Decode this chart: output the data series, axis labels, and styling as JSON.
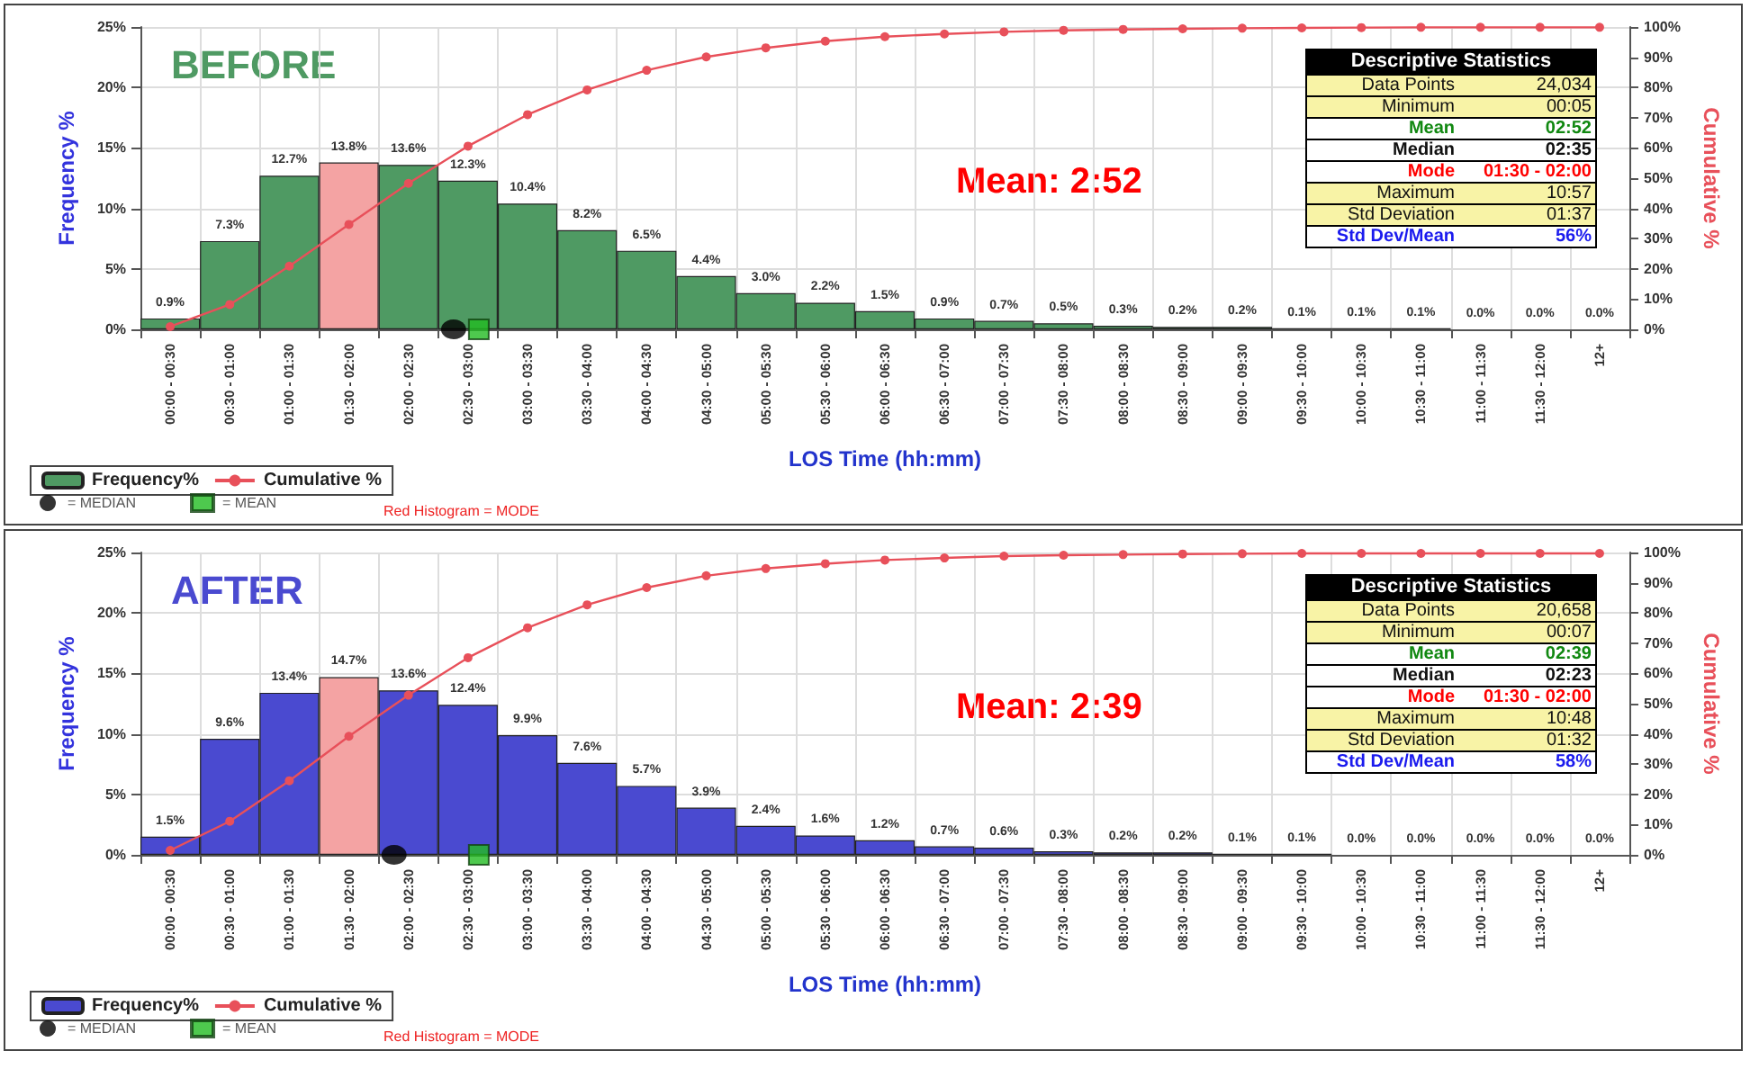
{
  "chart_data": [
    {
      "type": "bar",
      "xlabel": "LOS Time (hh:mm)",
      "ylabel": "Frequency %",
      "y2label": "Cumulative %",
      "grid": true,
      "legend": "bottom left",
      "categories": [
        "00:00 - 00:30",
        "00:30 - 01:00",
        "01:00 - 01:30",
        "01:30 - 02:00",
        "02:00 - 02:30",
        "02:30 - 03:00",
        "03:00 - 03:30",
        "03:30 - 04:00",
        "04:00 - 04:30",
        "04:30 - 05:00",
        "05:00 - 05:30",
        "05:30 - 06:00",
        "06:00 - 06:30",
        "06:30 - 07:00",
        "07:00 - 07:30",
        "07:30 - 08:00",
        "08:00 - 08:30",
        "08:30 - 09:00",
        "09:00 - 09:30",
        "09:30 - 10:00",
        "10:00 - 10:30",
        "10:30 - 11:00",
        "11:00 - 11:30",
        "11:30 - 12:00",
        "12+"
      ],
      "ylim": [
        0,
        25
      ],
      "yticks": [
        {
          "value": 0,
          "label": "0%"
        },
        {
          "value": 5,
          "label": "5%"
        },
        {
          "value": 10,
          "label": "10%"
        },
        {
          "value": 15,
          "label": "15%"
        },
        {
          "value": 20,
          "label": "20%"
        },
        {
          "value": 25,
          "label": "25%"
        }
      ],
      "y2lim": [
        0,
        100
      ],
      "y2ticks": [
        {
          "value": 0,
          "label": "0%"
        },
        {
          "value": 10,
          "label": "10%"
        },
        {
          "value": 20,
          "label": "20%"
        },
        {
          "value": 30,
          "label": "30%"
        },
        {
          "value": 40,
          "label": "40%"
        },
        {
          "value": 50,
          "label": "50%"
        },
        {
          "value": 60,
          "label": "60%"
        },
        {
          "value": 70,
          "label": "70%"
        },
        {
          "value": 80,
          "label": "80%"
        },
        {
          "value": 90,
          "label": "90%"
        },
        {
          "value": 100,
          "label": "100%"
        }
      ],
      "series": [
        {
          "name": "Frequency%",
          "color": "#4f9a63",
          "colors": [
            "#4f9a63",
            "#4f9a63",
            "#4f9a63",
            "#f4a3a3",
            "#4f9a63",
            "#4f9a63",
            "#4f9a63",
            "#4f9a63",
            "#4f9a63",
            "#4f9a63",
            "#4f9a63",
            "#4f9a63",
            "#4f9a63",
            "#4f9a63",
            "#4f9a63",
            "#4f9a63",
            "#4f9a63",
            "#4f9a63",
            "#4f9a63",
            "#4f9a63",
            "#4f9a63",
            "#4f9a63",
            "#4f9a63",
            "#4f9a63",
            "#4f9a63"
          ],
          "values": [
            0.9,
            7.3,
            12.7,
            13.8,
            13.6,
            12.3,
            10.4,
            8.2,
            6.5,
            4.4,
            3.0,
            2.2,
            1.5,
            0.9,
            0.7,
            0.5,
            0.3,
            0.2,
            0.2,
            0.1,
            0.1,
            0.1,
            0.0,
            0.0,
            0.0
          ],
          "value_labels": [
            "0.9%",
            "7.3%",
            "12.7%",
            "13.8%",
            "13.6%",
            "12.3%",
            "10.4%",
            "8.2%",
            "6.5%",
            "4.4%",
            "3.0%",
            "2.2%",
            "1.5%",
            "0.9%",
            "0.7%",
            "0.5%",
            "0.3%",
            "0.2%",
            "0.2%",
            "0.1%",
            "0.1%",
            "0.1%",
            "0.0%",
            "0.0%",
            "0.0%"
          ]
        },
        {
          "name": "Cumulative %",
          "type": "line",
          "axis": "y2",
          "marker": "circle",
          "color": "#e8505a",
          "values": [
            0.9,
            8.2,
            20.9,
            34.7,
            48.3,
            60.6,
            71.0,
            79.2,
            85.7,
            90.1,
            93.1,
            95.3,
            96.8,
            97.7,
            98.4,
            98.9,
            99.2,
            99.4,
            99.6,
            99.7,
            99.8,
            99.9,
            99.9,
            99.9,
            99.9
          ]
        },
        {
          "name": "= MEDIAN",
          "type": "scatter",
          "marker": "circle",
          "color": "#000000",
          "values": [
            null,
            null,
            null,
            null,
            null,
            0,
            null,
            null,
            null,
            null,
            null,
            null,
            null,
            null,
            null,
            null,
            null,
            null,
            null,
            null,
            null,
            null,
            null,
            null,
            null
          ]
        },
        {
          "name": "= MEAN",
          "type": "scatter",
          "marker": "square",
          "color": "#22bb22",
          "values": [
            null,
            null,
            null,
            null,
            null,
            0,
            null,
            null,
            null,
            null,
            null,
            null,
            null,
            null,
            null,
            null,
            null,
            null,
            null,
            null,
            null,
            null,
            null,
            null,
            null
          ]
        }
      ],
      "annotations": [
        "BEFORE",
        "Mean: 2:52",
        "Descriptive Statistics",
        "Data Points",
        "24,034",
        "Minimum",
        "00:05",
        "Mean",
        "02:52",
        "Median",
        "02:35",
        "Mode",
        "01:30 - 02:00",
        "Maximum",
        "10:57",
        "Std Deviation",
        "01:37",
        "Std Dev/Mean",
        "56%",
        "Red Histogram = MODE"
      ]
    },
    {
      "type": "bar",
      "xlabel": "LOS Time (hh:mm)",
      "ylabel": "Frequency %",
      "y2label": "Cumulative %",
      "grid": true,
      "legend": "bottom left",
      "categories": [
        "00:00 - 00:30",
        "00:30 - 01:00",
        "01:00 - 01:30",
        "01:30 - 02:00",
        "02:00 - 02:30",
        "02:30 - 03:00",
        "03:00 - 03:30",
        "03:30 - 04:00",
        "04:00 - 04:30",
        "04:30 - 05:00",
        "05:00 - 05:30",
        "05:30 - 06:00",
        "06:00 - 06:30",
        "06:30 - 07:00",
        "07:00 - 07:30",
        "07:30 - 08:00",
        "08:00 - 08:30",
        "08:30 - 09:00",
        "09:00 - 09:30",
        "09:30 - 10:00",
        "10:00 - 10:30",
        "10:30 - 11:00",
        "11:00 - 11:30",
        "11:30 - 12:00",
        "12+"
      ],
      "ylim": [
        0,
        25
      ],
      "yticks": [
        {
          "value": 0,
          "label": "0%"
        },
        {
          "value": 5,
          "label": "5%"
        },
        {
          "value": 10,
          "label": "10%"
        },
        {
          "value": 15,
          "label": "15%"
        },
        {
          "value": 20,
          "label": "20%"
        },
        {
          "value": 25,
          "label": "25%"
        }
      ],
      "y2lim": [
        0,
        100
      ],
      "y2ticks": [
        {
          "value": 0,
          "label": "0%"
        },
        {
          "value": 10,
          "label": "10%"
        },
        {
          "value": 20,
          "label": "20%"
        },
        {
          "value": 30,
          "label": "30%"
        },
        {
          "value": 40,
          "label": "40%"
        },
        {
          "value": 50,
          "label": "50%"
        },
        {
          "value": 60,
          "label": "60%"
        },
        {
          "value": 70,
          "label": "70%"
        },
        {
          "value": 80,
          "label": "80%"
        },
        {
          "value": 90,
          "label": "90%"
        },
        {
          "value": 100,
          "label": "100%"
        }
      ],
      "series": [
        {
          "name": "Frequency%",
          "color": "#4a4ad0",
          "colors": [
            "#4a4ad0",
            "#4a4ad0",
            "#4a4ad0",
            "#f4a3a3",
            "#4a4ad0",
            "#4a4ad0",
            "#4a4ad0",
            "#4a4ad0",
            "#4a4ad0",
            "#4a4ad0",
            "#4a4ad0",
            "#4a4ad0",
            "#4a4ad0",
            "#4a4ad0",
            "#4a4ad0",
            "#4a4ad0",
            "#4a4ad0",
            "#4a4ad0",
            "#4a4ad0",
            "#4a4ad0",
            "#4a4ad0",
            "#4a4ad0",
            "#4a4ad0",
            "#4a4ad0",
            "#4a4ad0"
          ],
          "values": [
            1.5,
            9.6,
            13.4,
            14.7,
            13.6,
            12.4,
            9.9,
            7.6,
            5.7,
            3.9,
            2.4,
            1.6,
            1.2,
            0.7,
            0.6,
            0.3,
            0.2,
            0.2,
            0.1,
            0.1,
            0.0,
            0.0,
            0.0,
            0.0,
            0.0
          ],
          "value_labels": [
            "1.5%",
            "9.6%",
            "13.4%",
            "14.7%",
            "13.6%",
            "12.4%",
            "9.9%",
            "7.6%",
            "5.7%",
            "3.9%",
            "2.4%",
            "1.6%",
            "1.2%",
            "0.7%",
            "0.6%",
            "0.3%",
            "0.2%",
            "0.2%",
            "0.1%",
            "0.1%",
            "0.0%",
            "0.0%",
            "0.0%",
            "0.0%",
            "0.0%"
          ]
        },
        {
          "name": "Cumulative %",
          "type": "line",
          "axis": "y2",
          "marker": "circle",
          "color": "#e8505a",
          "values": [
            1.5,
            11.1,
            24.5,
            39.2,
            52.8,
            65.2,
            75.1,
            82.7,
            88.4,
            92.3,
            94.7,
            96.3,
            97.5,
            98.2,
            98.8,
            99.1,
            99.3,
            99.5,
            99.6,
            99.7,
            99.7,
            99.7,
            99.7,
            99.7,
            99.7
          ]
        },
        {
          "name": "= MEDIAN",
          "type": "scatter",
          "marker": "circle",
          "color": "#000000",
          "values": [
            null,
            null,
            null,
            null,
            0,
            null,
            null,
            null,
            null,
            null,
            null,
            null,
            null,
            null,
            null,
            null,
            null,
            null,
            null,
            null,
            null,
            null,
            null,
            null,
            null
          ]
        },
        {
          "name": "= MEAN",
          "type": "scatter",
          "marker": "square",
          "color": "#22bb22",
          "values": [
            null,
            null,
            null,
            null,
            null,
            0,
            null,
            null,
            null,
            null,
            null,
            null,
            null,
            null,
            null,
            null,
            null,
            null,
            null,
            null,
            null,
            null,
            null,
            null,
            null
          ]
        }
      ],
      "annotations": [
        "AFTER",
        "Mean: 2:39",
        "Descriptive Statistics",
        "Data Points",
        "20,658",
        "Minimum",
        "00:07",
        "Mean",
        "02:39",
        "Median",
        "02:23",
        "Mode",
        "01:30 - 02:00",
        "Maximum",
        "10:48",
        "Std Deviation",
        "01:32",
        "Std Dev/Mean",
        "58%",
        "Red Histogram = MODE"
      ]
    }
  ]
}
